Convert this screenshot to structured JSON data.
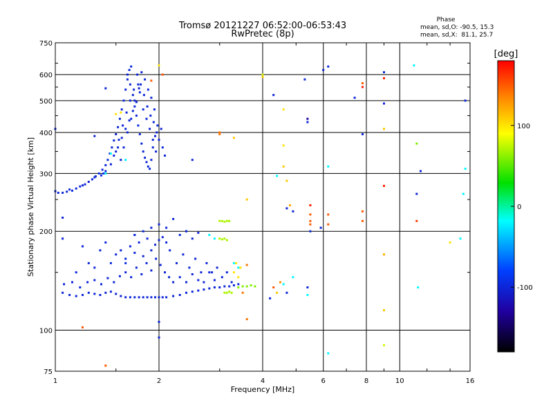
{
  "chart_data": {
    "type": "scatter",
    "title": "Tromsø 20121227 06:52:00-06:53:43",
    "subtitle": "RwPretec (8p)",
    "xlabel": "Frequency [MHz]",
    "ylabel": "Stationary phase Virtual Height [km]",
    "x_scale": "log",
    "y_scale": "log",
    "xlim": [
      1,
      16
    ],
    "ylim": [
      75,
      750
    ],
    "x_ticks": [
      1,
      2,
      4,
      6,
      8,
      10,
      16
    ],
    "x_tick_labels": [
      "1",
      "2",
      "4",
      "6",
      "8",
      "10",
      "16"
    ],
    "y_ticks": [
      75,
      100,
      200,
      300,
      400,
      500,
      600,
      750
    ],
    "y_tick_labels": [
      "75",
      "100",
      "200",
      "300",
      "400",
      "500",
      "600",
      "750"
    ],
    "grid": true,
    "stats": {
      "heading": "Phase",
      "line1": "mean, sd,O: -90.5, 15.3",
      "line2": "mean, sd,X:  81.1, 25.7"
    },
    "colorbar": {
      "label": "[deg]",
      "range": [
        -180,
        180
      ],
      "ticks": [
        100,
        0,
        -100
      ],
      "tick_labels": [
        "100",
        "0",
        "-100"
      ],
      "colors": [
        "#ff0000",
        "#ff8000",
        "#ffff00",
        "#00e000",
        "#00ffff",
        "#0040ff",
        "#2000a0",
        "#000000"
      ]
    },
    "points": [
      [
        1.0,
        265,
        -100
      ],
      [
        1.02,
        262,
        -100
      ],
      [
        1.05,
        262,
        -100
      ],
      [
        1.08,
        264,
        -100
      ],
      [
        1.12,
        266,
        -95
      ],
      [
        1.15,
        270,
        -100
      ],
      [
        1.18,
        274,
        -100
      ],
      [
        1.22,
        278,
        -100
      ],
      [
        1.25,
        283,
        -105
      ],
      [
        1.28,
        288,
        -100
      ],
      [
        1.31,
        294,
        -100
      ],
      [
        1.34,
        300,
        -90
      ],
      [
        1.37,
        308,
        -100
      ],
      [
        1.4,
        318,
        -100
      ],
      [
        1.42,
        330,
        -95
      ],
      [
        1.44,
        345,
        -100
      ],
      [
        1.46,
        360,
        -100
      ],
      [
        1.48,
        378,
        -100
      ],
      [
        1.5,
        395,
        -105
      ],
      [
        1.52,
        415,
        -100
      ],
      [
        1.54,
        440,
        -100
      ],
      [
        1.56,
        470,
        -100
      ],
      [
        1.58,
        500,
        -95
      ],
      [
        1.6,
        540,
        -100
      ],
      [
        1.62,
        580,
        -100
      ],
      [
        1.64,
        620,
        -100
      ],
      [
        1.66,
        635,
        -100
      ],
      [
        1.62,
        600,
        -100
      ],
      [
        1.65,
        560,
        -100
      ],
      [
        1.68,
        520,
        -100
      ],
      [
        1.7,
        480,
        -100
      ],
      [
        1.72,
        450,
        -100
      ],
      [
        1.74,
        420,
        -95
      ],
      [
        1.76,
        395,
        -100
      ],
      [
        1.78,
        370,
        -100
      ],
      [
        1.8,
        350,
        -100
      ],
      [
        1.82,
        335,
        -100
      ],
      [
        1.84,
        325,
        -100
      ],
      [
        1.86,
        315,
        -100
      ],
      [
        1.88,
        310,
        -95
      ],
      [
        1.9,
        330,
        -100
      ],
      [
        1.92,
        360,
        -100
      ],
      [
        1.95,
        390,
        -100
      ],
      [
        1.98,
        420,
        -100
      ],
      [
        2.0,
        380,
        -100
      ],
      [
        2.03,
        410,
        -100
      ],
      [
        1.55,
        330,
        -100
      ],
      [
        1.58,
        360,
        -100
      ],
      [
        1.62,
        400,
        -100
      ],
      [
        1.66,
        440,
        -100
      ],
      [
        1.7,
        500,
        -100
      ],
      [
        1.74,
        560,
        -100
      ],
      [
        1.78,
        610,
        -100
      ],
      [
        1.82,
        580,
        -100
      ],
      [
        1.86,
        540,
        -100
      ],
      [
        1.9,
        510,
        -100
      ],
      [
        1.94,
        470,
        -100
      ],
      [
        1.5,
        350,
        -100
      ],
      [
        1.53,
        380,
        -100
      ],
      [
        1.57,
        420,
        -100
      ],
      [
        1.61,
        460,
        -100
      ],
      [
        1.65,
        500,
        -100
      ],
      [
        1.69,
        540,
        -100
      ],
      [
        1.73,
        600,
        -100
      ],
      [
        1.77,
        560,
        -100
      ],
      [
        1.81,
        520,
        -100
      ],
      [
        1.85,
        480,
        -100
      ],
      [
        1.89,
        450,
        -100
      ],
      [
        1.93,
        430,
        -100
      ],
      [
        1.97,
        400,
        -100
      ],
      [
        1.45,
        320,
        -100
      ],
      [
        1.48,
        340,
        -100
      ],
      [
        1.52,
        360,
        -100
      ],
      [
        1.56,
        385,
        -100
      ],
      [
        1.6,
        410,
        -100
      ],
      [
        1.64,
        435,
        -100
      ],
      [
        1.68,
        465,
        -100
      ],
      [
        1.72,
        495,
        -100
      ],
      [
        1.76,
        530,
        -100
      ],
      [
        1.8,
        470,
        -100
      ],
      [
        1.84,
        440,
        -100
      ],
      [
        1.88,
        410,
        -100
      ],
      [
        1.92,
        380,
        -100
      ],
      [
        1.96,
        350,
        -100
      ],
      [
        2.05,
        360,
        -100
      ],
      [
        2.08,
        340,
        -100
      ],
      [
        1.4,
        305,
        -100
      ],
      [
        1.38,
        300,
        -90
      ],
      [
        1.36,
        296,
        -100
      ],
      [
        1.3,
        292,
        -100
      ],
      [
        1.2,
        276,
        -100
      ],
      [
        1.1,
        268,
        -100
      ],
      [
        1.05,
        130,
        -100
      ],
      [
        1.1,
        128,
        -100
      ],
      [
        1.15,
        127,
        -100
      ],
      [
        1.2,
        128,
        -100
      ],
      [
        1.25,
        130,
        -100
      ],
      [
        1.3,
        129,
        -100
      ],
      [
        1.35,
        128,
        -100
      ],
      [
        1.4,
        130,
        -100
      ],
      [
        1.45,
        131,
        -100
      ],
      [
        1.5,
        129,
        -100
      ],
      [
        1.55,
        127,
        -100
      ],
      [
        1.6,
        126,
        -100
      ],
      [
        1.65,
        126,
        -100
      ],
      [
        1.7,
        126,
        -100
      ],
      [
        1.75,
        126,
        -100
      ],
      [
        1.8,
        126,
        -100
      ],
      [
        1.85,
        126,
        -100
      ],
      [
        1.9,
        126,
        -100
      ],
      [
        1.95,
        126,
        -100
      ],
      [
        2.0,
        126,
        -100
      ],
      [
        2.05,
        126,
        -100
      ],
      [
        2.1,
        126,
        -100
      ],
      [
        2.2,
        127,
        -100
      ],
      [
        2.3,
        128,
        -100
      ],
      [
        2.4,
        130,
        -100
      ],
      [
        2.5,
        131,
        -100
      ],
      [
        2.6,
        132,
        -100
      ],
      [
        2.7,
        133,
        -100
      ],
      [
        2.8,
        134,
        -100
      ],
      [
        2.9,
        135,
        -100
      ],
      [
        3.0,
        135,
        -100
      ],
      [
        3.1,
        136,
        -100
      ],
      [
        3.2,
        136,
        -100
      ],
      [
        3.3,
        137,
        -100
      ],
      [
        3.4,
        138,
        -100
      ],
      [
        1.06,
        138,
        -100
      ],
      [
        1.12,
        140,
        -100
      ],
      [
        1.18,
        135,
        -100
      ],
      [
        1.24,
        140,
        -100
      ],
      [
        1.3,
        142,
        -100
      ],
      [
        1.36,
        138,
        -100
      ],
      [
        1.42,
        144,
        -100
      ],
      [
        1.48,
        140,
        -100
      ],
      [
        1.54,
        146,
        -100
      ],
      [
        1.6,
        150,
        -100
      ],
      [
        1.66,
        145,
        -100
      ],
      [
        1.72,
        155,
        -100
      ],
      [
        1.78,
        148,
        -100
      ],
      [
        1.84,
        160,
        -100
      ],
      [
        1.9,
        152,
        -100
      ],
      [
        1.96,
        165,
        -100
      ],
      [
        2.02,
        158,
        -100
      ],
      [
        2.08,
        150,
        -100
      ],
      [
        2.14,
        145,
        -100
      ],
      [
        2.2,
        140,
        -100
      ],
      [
        2.3,
        145,
        -100
      ],
      [
        2.4,
        140,
        -100
      ],
      [
        2.5,
        148,
        -100
      ],
      [
        2.6,
        142,
        -100
      ],
      [
        2.7,
        140,
        -100
      ],
      [
        2.8,
        150,
        -100
      ],
      [
        2.9,
        142,
        -100
      ],
      [
        1.5,
        170,
        -100
      ],
      [
        1.55,
        175,
        -100
      ],
      [
        1.6,
        165,
        -100
      ],
      [
        1.65,
        180,
        -100
      ],
      [
        1.7,
        172,
        -100
      ],
      [
        1.75,
        185,
        -100
      ],
      [
        1.8,
        168,
        -100
      ],
      [
        1.85,
        190,
        -100
      ],
      [
        1.9,
        175,
        -100
      ],
      [
        1.95,
        182,
        -100
      ],
      [
        2.0,
        188,
        -100
      ],
      [
        2.05,
        192,
        -100
      ],
      [
        2.1,
        185,
        -100
      ],
      [
        2.3,
        195,
        -100
      ],
      [
        2.4,
        200,
        -100
      ],
      [
        2.5,
        190,
        -100
      ],
      [
        2.6,
        198,
        -100
      ],
      [
        1.7,
        195,
        -100
      ],
      [
        1.8,
        200,
        -100
      ],
      [
        1.9,
        205,
        -100
      ],
      [
        1.05,
        190,
        -100
      ],
      [
        1.2,
        180,
        -100
      ],
      [
        1.35,
        175,
        -100
      ],
      [
        1.4,
        185,
        -100
      ],
      [
        1.25,
        160,
        -100
      ],
      [
        1.3,
        155,
        -100
      ],
      [
        1.15,
        150,
        -100
      ],
      [
        1.45,
        160,
        -95
      ],
      [
        1.6,
        160,
        -95
      ],
      [
        2.15,
        175,
        -100
      ],
      [
        2.25,
        160,
        -100
      ],
      [
        2.35,
        170,
        -100
      ],
      [
        2.45,
        155,
        -100
      ],
      [
        2.55,
        165,
        -100
      ],
      [
        2.65,
        150,
        -100
      ],
      [
        2.75,
        160,
        -100
      ],
      [
        2.85,
        150,
        -100
      ],
      [
        2.95,
        155,
        -100
      ],
      [
        3.05,
        145,
        -100
      ],
      [
        3.15,
        150,
        -100
      ],
      [
        3.25,
        140,
        -100
      ],
      [
        3.0,
        215,
        70
      ],
      [
        3.05,
        215,
        70
      ],
      [
        3.1,
        214,
        70
      ],
      [
        3.15,
        215,
        70
      ],
      [
        3.2,
        215,
        70
      ],
      [
        3.0,
        190,
        70
      ],
      [
        3.05,
        189,
        70
      ],
      [
        3.1,
        190,
        70
      ],
      [
        3.15,
        188,
        70
      ],
      [
        3.1,
        130,
        70
      ],
      [
        3.15,
        130,
        70
      ],
      [
        3.2,
        131,
        70
      ],
      [
        3.25,
        130,
        70
      ],
      [
        3.4,
        135,
        60
      ],
      [
        3.5,
        136,
        60
      ],
      [
        3.6,
        136,
        60
      ],
      [
        3.7,
        137,
        60
      ],
      [
        3.8,
        136,
        60
      ],
      [
        3.3,
        150,
        100
      ],
      [
        3.35,
        160,
        100
      ],
      [
        3.4,
        145,
        100
      ],
      [
        3.45,
        155,
        100
      ],
      [
        3.3,
        160,
        -20
      ],
      [
        3.4,
        155,
        -20
      ],
      [
        3.6,
        158,
        140
      ],
      [
        3.5,
        130,
        140
      ],
      [
        3.6,
        108,
        140
      ],
      [
        4.3,
        135,
        150
      ],
      [
        4.4,
        130,
        110
      ],
      [
        4.5,
        140,
        130
      ],
      [
        4.6,
        138,
        -20
      ],
      [
        4.7,
        130,
        -100
      ],
      [
        4.9,
        145,
        -20
      ],
      [
        5.4,
        128,
        -20
      ],
      [
        5.4,
        135,
        -100
      ],
      [
        4.2,
        125,
        -100
      ],
      [
        4.7,
        235,
        -100
      ],
      [
        4.9,
        230,
        -100
      ],
      [
        4.8,
        240,
        120
      ],
      [
        5.5,
        225,
        150
      ],
      [
        5.5,
        215,
        150
      ],
      [
        5.5,
        210,
        150
      ],
      [
        5.5,
        240,
        170
      ],
      [
        5.9,
        205,
        -100
      ],
      [
        6.2,
        210,
        150
      ],
      [
        6.2,
        225,
        150
      ],
      [
        7.8,
        215,
        150
      ],
      [
        7.8,
        230,
        150
      ],
      [
        7.8,
        565,
        150
      ],
      [
        7.8,
        550,
        170
      ],
      [
        9.0,
        585,
        170
      ],
      [
        9.0,
        610,
        -100
      ],
      [
        9.0,
        170,
        120
      ],
      [
        9.0,
        115,
        110
      ],
      [
        9.0,
        90,
        80
      ],
      [
        9.0,
        275,
        170
      ],
      [
        9.0,
        410,
        110
      ],
      [
        9.0,
        490,
        -100
      ],
      [
        6.2,
        85,
        -20
      ],
      [
        11.0,
        640,
        -20
      ],
      [
        11.2,
        370,
        60
      ],
      [
        11.2,
        260,
        -100
      ],
      [
        11.2,
        215,
        160
      ],
      [
        11.3,
        135,
        -20
      ],
      [
        11.5,
        305,
        -100
      ],
      [
        15.5,
        500,
        -100
      ],
      [
        15.5,
        310,
        -20
      ],
      [
        15.3,
        260,
        -20
      ],
      [
        15.0,
        190,
        -20
      ],
      [
        14.0,
        185,
        100
      ],
      [
        4.0,
        600,
        80
      ],
      [
        4.0,
        590,
        110
      ],
      [
        4.3,
        520,
        -100
      ],
      [
        4.6,
        470,
        100
      ],
      [
        5.3,
        580,
        -100
      ],
      [
        5.4,
        430,
        -100
      ],
      [
        5.4,
        440,
        -130
      ],
      [
        6.0,
        620,
        -100
      ],
      [
        6.2,
        635,
        -100
      ],
      [
        7.4,
        510,
        -100
      ],
      [
        7.8,
        395,
        -100
      ],
      [
        4.6,
        365,
        100
      ],
      [
        4.6,
        315,
        110
      ],
      [
        4.4,
        295,
        -20
      ],
      [
        4.7,
        285,
        110
      ],
      [
        6.2,
        315,
        -20
      ],
      [
        5.5,
        200,
        -100
      ],
      [
        3.0,
        395,
        140
      ],
      [
        3.0,
        400,
        140
      ],
      [
        3.6,
        250,
        110
      ],
      [
        3.3,
        385,
        110
      ],
      [
        2.5,
        330,
        -100
      ],
      [
        2.4,
        200,
        -100
      ],
      [
        2.8,
        195,
        -20
      ],
      [
        2.9,
        190,
        -20
      ],
      [
        2.0,
        106,
        -100
      ],
      [
        2.0,
        95,
        -100
      ],
      [
        1.7,
        195,
        -100
      ],
      [
        1.2,
        102,
        150
      ],
      [
        1.4,
        78,
        150
      ],
      [
        1.4,
        545,
        -100
      ],
      [
        1.0,
        410,
        -100
      ],
      [
        1.3,
        390,
        -100
      ],
      [
        1.5,
        455,
        100
      ],
      [
        1.9,
        575,
        150
      ],
      [
        2.0,
        640,
        100
      ],
      [
        2.05,
        600,
        150
      ],
      [
        1.55,
        460,
        100
      ],
      [
        1.45,
        345,
        -20
      ],
      [
        1.4,
        300,
        -20
      ],
      [
        1.6,
        330,
        -20
      ],
      [
        1.75,
        545,
        -100
      ],
      [
        1.05,
        220,
        -100
      ],
      [
        2.0,
        210,
        -100
      ],
      [
        2.2,
        218,
        -100
      ],
      [
        2.1,
        205,
        -100
      ]
    ]
  }
}
